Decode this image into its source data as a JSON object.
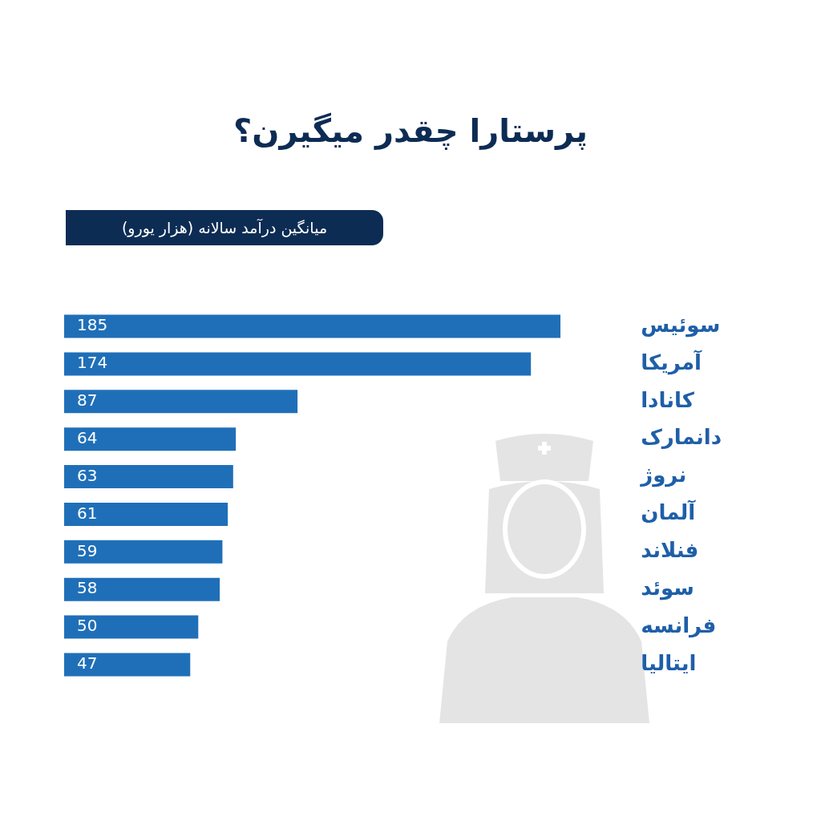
{
  "chart_data": {
    "type": "bar",
    "orientation": "horizontal",
    "title": "پرستارا چقدر میگیرن؟",
    "subtitle": "میانگین درآمد سالانه (هزار یورو)",
    "categories": [
      "سوئیس",
      "آمریکا",
      "کانادا",
      "دانمارک",
      "نروژ",
      "آلمان",
      "فنلاند",
      "سوئد",
      "فرانسه",
      "ایتالیا"
    ],
    "values": [
      185,
      174,
      87,
      64,
      63,
      61,
      59,
      58,
      50,
      47
    ],
    "color": "#1f6fb8",
    "data_labels": true,
    "grid": false,
    "legend": false
  }
}
